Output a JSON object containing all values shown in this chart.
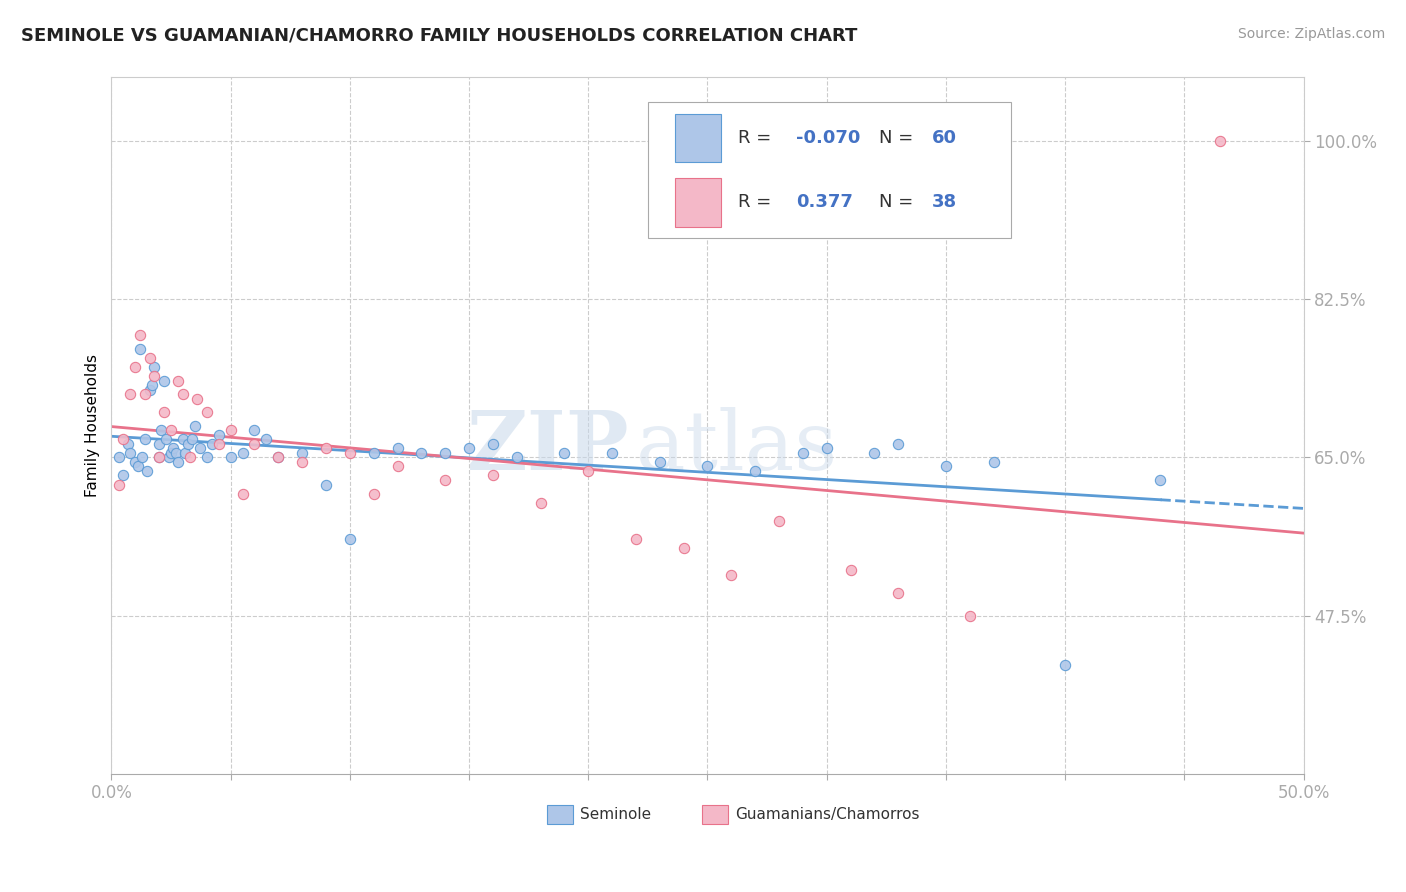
{
  "title": "SEMINOLE VS GUAMANIAN/CHAMORRO FAMILY HOUSEHOLDS CORRELATION CHART",
  "source": "Source: ZipAtlas.com",
  "ylabel_ticks": [
    47.5,
    65.0,
    82.5,
    100.0
  ],
  "xmin": 0.0,
  "xmax": 50.0,
  "ymin": 30.0,
  "ymax": 107.0,
  "legend_r1": "-0.070",
  "legend_n1": "60",
  "legend_r2": "0.377",
  "legend_n2": "38",
  "color_seminole": "#aec6e8",
  "color_guamanian": "#f4b8c8",
  "color_seminole_line": "#5b9bd5",
  "color_guamanian_line": "#e8728a",
  "color_blue_text": "#4472C4",
  "watermark_zip": "ZIP",
  "watermark_atlas": "atlas",
  "seminole_x": [
    0.3,
    0.5,
    0.7,
    0.8,
    1.0,
    1.1,
    1.2,
    1.3,
    1.4,
    1.5,
    1.6,
    1.7,
    1.8,
    2.0,
    2.0,
    2.1,
    2.2,
    2.3,
    2.4,
    2.5,
    2.6,
    2.7,
    2.8,
    3.0,
    3.1,
    3.2,
    3.4,
    3.5,
    3.7,
    4.0,
    4.2,
    4.5,
    5.0,
    5.5,
    6.0,
    6.5,
    7.0,
    8.0,
    9.0,
    10.0,
    11.0,
    12.0,
    13.0,
    14.0,
    15.0,
    16.0,
    17.0,
    19.0,
    21.0,
    23.0,
    25.0,
    27.0,
    29.0,
    30.0,
    32.0,
    33.0,
    35.0,
    37.0,
    40.0,
    44.0
  ],
  "seminole_y": [
    65.0,
    63.0,
    66.5,
    65.5,
    64.5,
    64.0,
    77.0,
    65.0,
    67.0,
    63.5,
    72.5,
    73.0,
    75.0,
    65.0,
    66.5,
    68.0,
    73.5,
    67.0,
    65.0,
    65.5,
    66.0,
    65.5,
    64.5,
    67.0,
    65.5,
    66.5,
    67.0,
    68.5,
    66.0,
    65.0,
    66.5,
    67.5,
    65.0,
    65.5,
    68.0,
    67.0,
    65.0,
    65.5,
    62.0,
    56.0,
    65.5,
    66.0,
    65.5,
    65.5,
    66.0,
    66.5,
    65.0,
    65.5,
    65.5,
    64.5,
    64.0,
    63.5,
    65.5,
    66.0,
    65.5,
    66.5,
    64.0,
    64.5,
    42.0,
    62.5
  ],
  "guamanian_x": [
    0.3,
    0.5,
    0.8,
    1.0,
    1.2,
    1.4,
    1.6,
    1.8,
    2.0,
    2.2,
    2.5,
    2.8,
    3.0,
    3.3,
    3.6,
    4.0,
    4.5,
    5.0,
    5.5,
    6.0,
    7.0,
    8.0,
    9.0,
    10.0,
    11.0,
    12.0,
    14.0,
    16.0,
    18.0,
    20.0,
    22.0,
    24.0,
    26.0,
    28.0,
    31.0,
    33.0,
    36.0,
    46.5
  ],
  "guamanian_y": [
    62.0,
    67.0,
    72.0,
    75.0,
    78.5,
    72.0,
    76.0,
    74.0,
    65.0,
    70.0,
    68.0,
    73.5,
    72.0,
    65.0,
    71.5,
    70.0,
    66.5,
    68.0,
    61.0,
    66.5,
    65.0,
    64.5,
    66.0,
    65.5,
    61.0,
    64.0,
    62.5,
    63.0,
    60.0,
    63.5,
    56.0,
    55.0,
    52.0,
    58.0,
    52.5,
    50.0,
    47.5,
    100.0
  ]
}
